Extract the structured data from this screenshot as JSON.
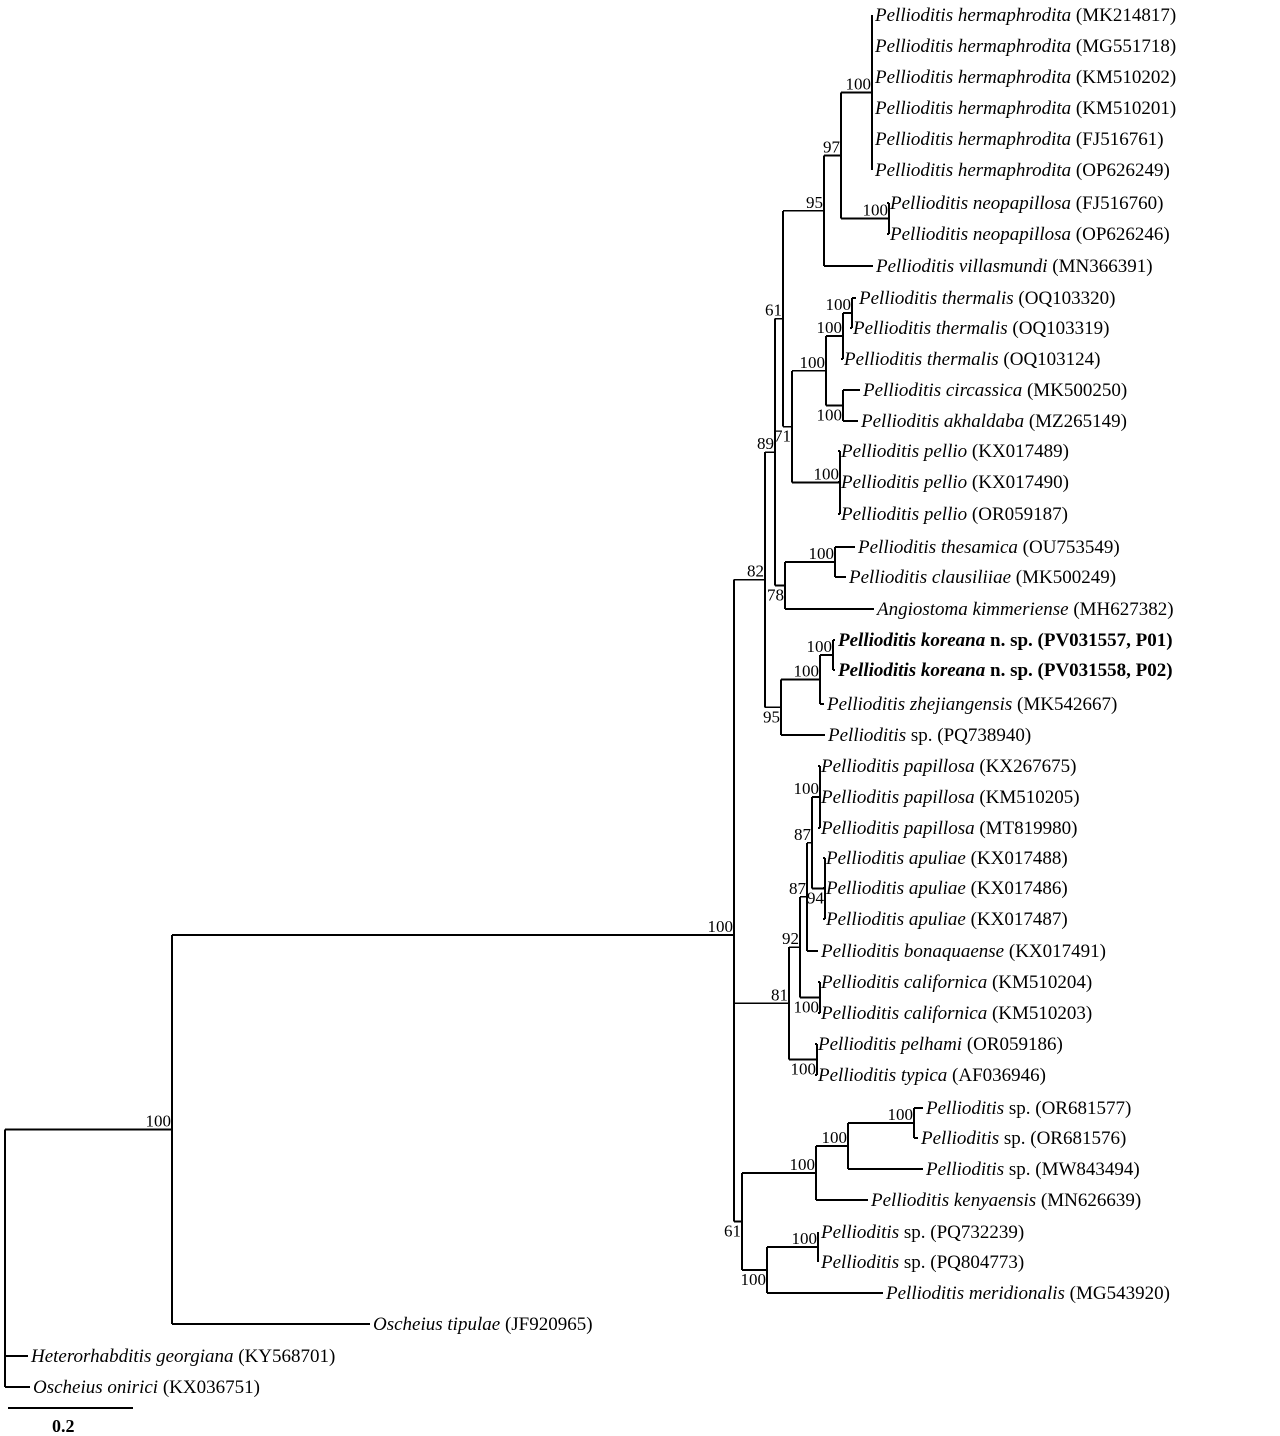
{
  "leaves": [
    {
      "italic": "Pellioditis hermaphrodita",
      "roman": "(MK214817)"
    },
    {
      "italic": "Pellioditis hermaphrodita",
      "roman": "(MG551718)"
    },
    {
      "italic": "Pellioditis hermaphrodita",
      "roman": "(KM510202)"
    },
    {
      "italic": "Pellioditis hermaphrodita",
      "roman": "(KM510201)"
    },
    {
      "italic": "Pellioditis hermaphrodita",
      "roman": "(FJ516761)"
    },
    {
      "italic": "Pellioditis hermaphrodita",
      "roman": "(OP626249)"
    },
    {
      "italic": "Pellioditis neopapillosa",
      "roman": "(FJ516760)"
    },
    {
      "italic": "Pellioditis neopapillosa",
      "roman": "(OP626246)"
    },
    {
      "italic": "Pellioditis villasmundi",
      "roman": "(MN366391)"
    },
    {
      "italic": "Pellioditis thermalis",
      "roman": "(OQ103320)"
    },
    {
      "italic": "Pellioditis thermalis",
      "roman": "(OQ103319)"
    },
    {
      "italic": "Pellioditis thermalis",
      "roman": "(OQ103124)"
    },
    {
      "italic": "Pellioditis circassica",
      "roman": "(MK500250)"
    },
    {
      "italic": "Pellioditis akhaldaba",
      "roman": "(MZ265149)"
    },
    {
      "italic": "Pellioditis pellio",
      "roman": "(KX017489)"
    },
    {
      "italic": "Pellioditis pellio",
      "roman": "(KX017490)"
    },
    {
      "italic": "Pellioditis pellio",
      "roman": "(OR059187)"
    },
    {
      "italic": "Pellioditis thesamica",
      "roman": "(OU753549)"
    },
    {
      "italic": "Pellioditis clausiliiae",
      "roman": "(MK500249)"
    },
    {
      "italic": "Angiostoma kimmeriense",
      "roman": "(MH627382)"
    },
    {
      "italic": "Pellioditis koreana",
      "roman": "n. sp. (PV031557, P01)",
      "bold": true
    },
    {
      "italic": "Pellioditis koreana",
      "roman": "n. sp. (PV031558, P02)",
      "bold": true
    },
    {
      "italic": "Pellioditis zhejiangensis",
      "roman": "(MK542667)"
    },
    {
      "italic": "Pellioditis",
      "roman": "sp. (PQ738940)"
    },
    {
      "italic": "Pellioditis papillosa",
      "roman": "(KX267675)"
    },
    {
      "italic": "Pellioditis papillosa",
      "roman": "(KM510205)"
    },
    {
      "italic": "Pellioditis papillosa",
      "roman": "(MT819980)"
    },
    {
      "italic": "Pellioditis apuliae",
      "roman": "(KX017488)"
    },
    {
      "italic": "Pellioditis apuliae",
      "roman": "(KX017486)"
    },
    {
      "italic": "Pellioditis apuliae",
      "roman": "(KX017487)"
    },
    {
      "italic": "Pellioditis bonaquaense",
      "roman": "(KX017491)"
    },
    {
      "italic": "Pellioditis californica",
      "roman": "(KM510204)"
    },
    {
      "italic": "Pellioditis californica",
      "roman": "(KM510203)"
    },
    {
      "italic": "Pellioditis pelhami",
      "roman": "(OR059186)"
    },
    {
      "italic": "Pellioditis typica",
      "roman": "(AF036946)"
    },
    {
      "italic": "Pellioditis",
      "roman": "sp. (OR681577)"
    },
    {
      "italic": "Pellioditis",
      "roman": "sp. (OR681576)"
    },
    {
      "italic": "Pellioditis",
      "roman": "sp. (MW843494)"
    },
    {
      "italic": "Pellioditis kenyaensis",
      "roman": "(MN626639)"
    },
    {
      "italic": "Pellioditis",
      "roman": "sp. (PQ732239)"
    },
    {
      "italic": "Pellioditis",
      "roman": "sp. (PQ804773)"
    },
    {
      "italic": "Pellioditis meridionalis",
      "roman": "(MG543920)"
    },
    {
      "italic": "Oscheius tipulae",
      "roman": "(JF920965)"
    },
    {
      "italic": "Heterorhabditis georgiana",
      "roman": "(KY568701)"
    },
    {
      "italic": "Oscheius onirici",
      "roman": "(KX036751)"
    }
  ],
  "supports": {
    "herm": "100",
    "neo": "100",
    "n97": "97",
    "n95": "95",
    "therm2": "100",
    "therm": "100",
    "circ": "100",
    "n100a": "100",
    "pellio": "100",
    "n71": "71",
    "n61": "61",
    "thes": "100",
    "n78": "78",
    "n89": "89",
    "kor": "100",
    "kz": "100",
    "n95b": "95",
    "n82": "82",
    "pap": "100",
    "apu": "94",
    "n87a": "87",
    "n87b": "87",
    "cal": "100",
    "n92": "92",
    "pt": "100",
    "n81": "81",
    "or": "100",
    "n848": "100",
    "n816": "100",
    "pq": "100",
    "n767": "100",
    "n61b": "61",
    "main": "100",
    "n172": "100"
  },
  "scale_bar": {
    "label": "0.2",
    "value": 0.2
  },
  "colors": {
    "line": "#000000",
    "background": "#ffffff"
  }
}
